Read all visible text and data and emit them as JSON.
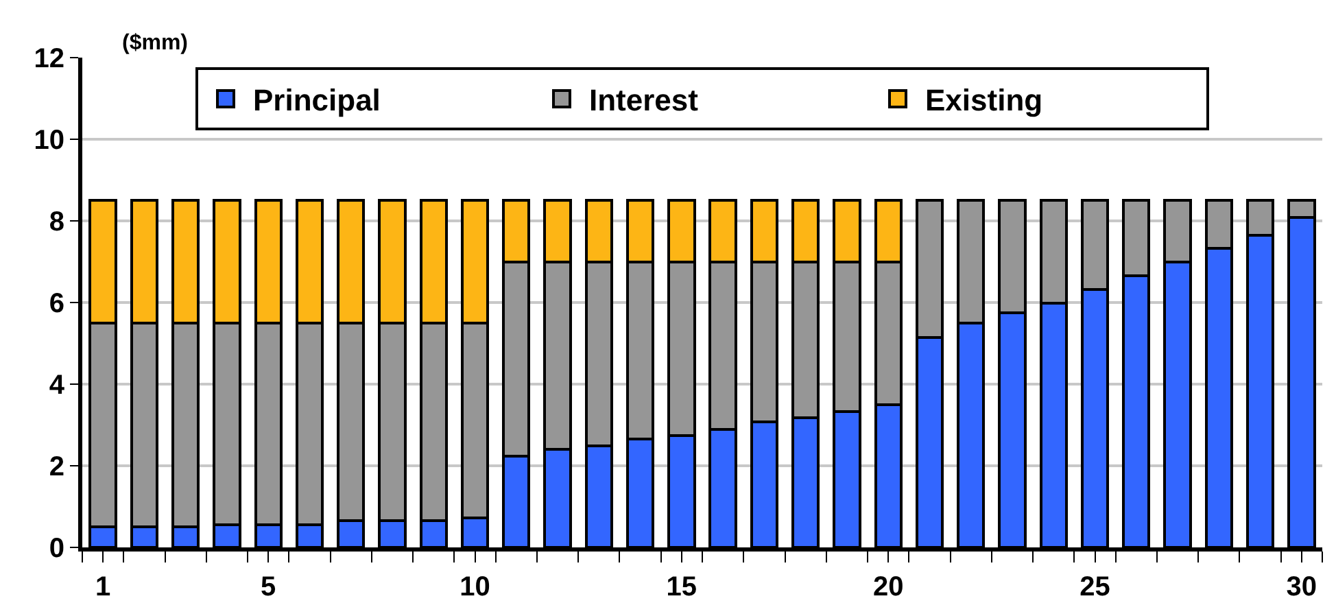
{
  "chart_data": {
    "type": "bar",
    "stacked": true,
    "ylabel": "($mm)",
    "x": [
      1,
      2,
      3,
      4,
      5,
      6,
      7,
      8,
      9,
      10,
      11,
      12,
      13,
      14,
      15,
      16,
      17,
      18,
      19,
      20,
      21,
      22,
      23,
      24,
      25,
      26,
      27,
      28,
      29,
      30
    ],
    "series": [
      {
        "name": "Principal",
        "color": "#3366ff",
        "values": [
          0.5,
          0.5,
          0.5,
          0.55,
          0.55,
          0.55,
          0.65,
          0.65,
          0.65,
          0.72,
          2.23,
          2.4,
          2.49,
          2.65,
          2.74,
          2.89,
          3.07,
          3.17,
          3.33,
          3.49,
          5.14,
          5.49,
          5.74,
          5.98,
          6.32,
          6.65,
          6.99,
          7.33,
          7.65,
          8.08
        ]
      },
      {
        "name": "Interest",
        "color": "#969696",
        "values": [
          5.0,
          5.0,
          5.0,
          4.95,
          4.95,
          4.95,
          4.85,
          4.85,
          4.85,
          4.78,
          4.77,
          4.6,
          4.51,
          4.35,
          4.26,
          4.11,
          3.93,
          3.83,
          3.67,
          3.51,
          3.36,
          3.01,
          2.76,
          2.52,
          2.18,
          1.85,
          1.51,
          1.17,
          0.85,
          0.42
        ]
      },
      {
        "name": "Existing",
        "color": "#fdb515",
        "values": [
          3,
          3,
          3,
          3,
          3,
          3,
          3,
          3,
          3,
          3,
          1.5,
          1.5,
          1.5,
          1.5,
          1.5,
          1.5,
          1.5,
          1.5,
          1.5,
          1.5,
          null,
          null,
          null,
          null,
          null,
          null,
          null,
          null,
          null,
          null
        ]
      }
    ],
    "xlim": [
      0.5,
      30.5
    ],
    "xticks": [
      1,
      5,
      10,
      15,
      20,
      25,
      30
    ],
    "ylim": [
      0,
      12
    ],
    "yticks": [
      0,
      2,
      4,
      6,
      8,
      10,
      12
    ],
    "grid": "y",
    "legend": "top"
  }
}
